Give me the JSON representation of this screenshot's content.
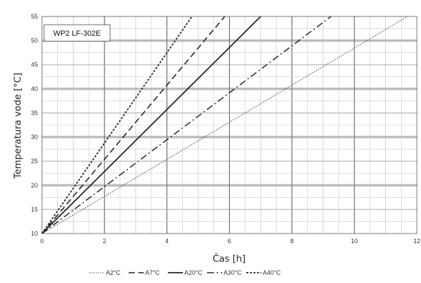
{
  "chart_data": {
    "type": "line",
    "title": "",
    "annotation": "WP2 LF-302E",
    "xlabel": "Čas [h]",
    "ylabel": "Temperatura vode [°C]",
    "xlim": [
      0,
      12
    ],
    "ylim": [
      10,
      55
    ],
    "xticks": [
      0,
      2,
      4,
      6,
      8,
      10,
      12
    ],
    "yticks": [
      10,
      15,
      20,
      25,
      30,
      35,
      40,
      45,
      50,
      55
    ],
    "grid": true,
    "legend_position": "bottom",
    "series": [
      {
        "name": "A2°C",
        "style": "dotted",
        "x": [
          0,
          11.7
        ],
        "y": [
          10,
          55
        ]
      },
      {
        "name": "A7°C",
        "style": "long-dash",
        "x": [
          0,
          5.85
        ],
        "y": [
          10,
          55
        ]
      },
      {
        "name": "A20°C",
        "style": "solid",
        "x": [
          0,
          7.0
        ],
        "y": [
          10,
          55
        ]
      },
      {
        "name": "A30°C",
        "style": "dash-dot",
        "x": [
          0,
          9.25
        ],
        "y": [
          10,
          55
        ]
      },
      {
        "name": "A40°C",
        "style": "short-dash",
        "x": [
          0,
          4.8
        ],
        "y": [
          10,
          55
        ]
      }
    ],
    "colors": {
      "line": "#222222",
      "grid_major": "#606060",
      "grid_minor": "#c8c8c8",
      "band": "#d0d0d0"
    }
  }
}
